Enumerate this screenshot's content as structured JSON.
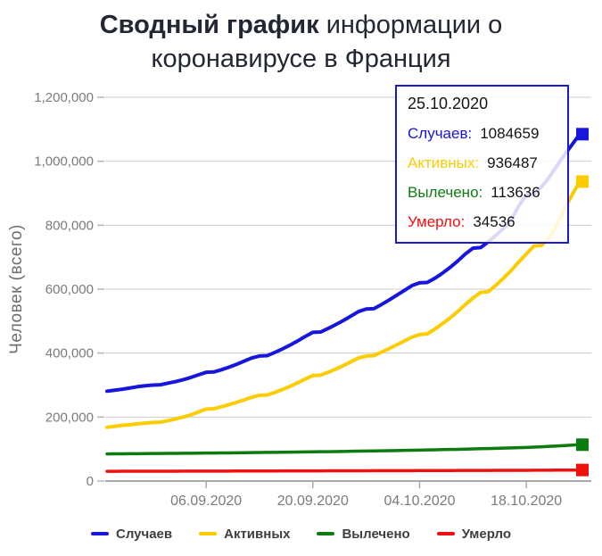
{
  "title": {
    "bold": "Сводный график",
    "rest": " информации о коронавирусе в Франция"
  },
  "tooltip": {
    "date": "25.10.2020",
    "rows": [
      {
        "label": "Случаев:",
        "value": "1084659"
      },
      {
        "label": "Активных:",
        "value": "936487"
      },
      {
        "label": "Вылечено:",
        "value": "113636"
      },
      {
        "label": "Умерло:",
        "value": "34536"
      }
    ]
  },
  "colors": {
    "cases": "#1616dd",
    "active": "#fbcd00",
    "recovered": "#0c7c10",
    "deaths": "#f11010",
    "tooltip_border": "#1a1acc",
    "grid": "#cccccc",
    "axis": "#a8a8a8",
    "tick_text": "#7b7b7b"
  },
  "chart_data": {
    "type": "line",
    "title": "Сводный график информации о коронавирусе в Франция",
    "ylabel": "Человек (всего)",
    "xlabel": "",
    "ylim": [
      0,
      1200000
    ],
    "grid": "horizontal",
    "legend_position": "bottom",
    "x_count": 63,
    "y_ticks": [
      {
        "v": 0,
        "label": "0"
      },
      {
        "v": 200000,
        "label": "200,000"
      },
      {
        "v": 400000,
        "label": "400,000"
      },
      {
        "v": 600000,
        "label": "600,000"
      },
      {
        "v": 800000,
        "label": "800,000"
      },
      {
        "v": 1000000,
        "label": "1,000,000"
      },
      {
        "v": 1200000,
        "label": "1,200,000"
      }
    ],
    "x_ticks": [
      {
        "day": 13,
        "label": "06.09.2020"
      },
      {
        "day": 27,
        "label": "20.09.2020"
      },
      {
        "day": 41,
        "label": "04.10.2020"
      },
      {
        "day": 55,
        "label": "18.10.2020"
      }
    ],
    "series": [
      {
        "name": "Случаев",
        "color": "#1616dd",
        "last_value": 1084659,
        "values": [
          281000,
          284000,
          287000,
          291000,
          295000,
          298000,
          300000,
          301000,
          306000,
          311000,
          317000,
          324000,
          332000,
          340000,
          341000,
          348000,
          356000,
          365000,
          375000,
          385000,
          391000,
          392000,
          402000,
          413000,
          425000,
          438000,
          452000,
          465000,
          466000,
          477000,
          489000,
          502000,
          516000,
          530000,
          538000,
          539000,
          552000,
          566000,
          581000,
          596000,
          611000,
          620000,
          621000,
          634000,
          650000,
          668000,
          688000,
          710000,
          728000,
          730000,
          748000,
          768000,
          790000,
          815000,
          860000,
          895000,
          897000,
          920000,
          950000,
          985000,
          1020000,
          1052000,
          1084659
        ]
      },
      {
        "name": "Активных",
        "color": "#fbcd00",
        "last_value": 936487,
        "values": [
          168000,
          171000,
          174000,
          176000,
          179000,
          181000,
          183000,
          184000,
          189000,
          194000,
          200000,
          207000,
          216000,
          225000,
          226000,
          232000,
          239000,
          246000,
          254000,
          262000,
          268000,
          269000,
          277000,
          286000,
          296000,
          307000,
          319000,
          330000,
          331000,
          340000,
          350000,
          361000,
          373000,
          385000,
          391000,
          392000,
          403000,
          414000,
          426000,
          438000,
          450000,
          458000,
          460000,
          475000,
          492000,
          510000,
          530000,
          552000,
          572000,
          590000,
          592000,
          612000,
          634000,
          658000,
          685000,
          710000,
          735000,
          737000,
          760000,
          800000,
          850000,
          895000,
          936487
        ]
      },
      {
        "name": "Вылечено",
        "color": "#0c7c10",
        "last_value": 113636,
        "values": [
          84700,
          85000,
          85200,
          85400,
          85600,
          85800,
          86000,
          86200,
          86400,
          86600,
          86800,
          87000,
          87200,
          87400,
          87600,
          87800,
          88000,
          88300,
          88600,
          88900,
          89200,
          89500,
          89800,
          90100,
          90400,
          90700,
          91000,
          91300,
          91600,
          91900,
          92200,
          92600,
          93000,
          93400,
          93800,
          94200,
          94600,
          95000,
          95400,
          95800,
          96200,
          96700,
          97200,
          97700,
          98200,
          98700,
          99200,
          99800,
          100400,
          101000,
          101600,
          102200,
          102900,
          103600,
          104300,
          105000,
          106000,
          107200,
          108400,
          109600,
          110900,
          112200,
          113636
        ]
      },
      {
        "name": "Умерло",
        "color": "#f11010",
        "last_value": 34536,
        "values": [
          30450,
          30500,
          30550,
          30600,
          30640,
          30680,
          30720,
          30760,
          30800,
          30850,
          30900,
          30950,
          31000,
          31050,
          31100,
          31150,
          31200,
          31250,
          31300,
          31350,
          31400,
          31460,
          31520,
          31580,
          31640,
          31700,
          31760,
          31820,
          31880,
          31940,
          32000,
          32060,
          32120,
          32180,
          32240,
          32300,
          32360,
          32420,
          32480,
          32540,
          32600,
          32660,
          32720,
          32780,
          32840,
          32900,
          32970,
          33040,
          33110,
          33180,
          33250,
          33320,
          33400,
          33480,
          33560,
          33640,
          33730,
          33820,
          33910,
          34050,
          34200,
          34360,
          34536
        ]
      }
    ]
  }
}
